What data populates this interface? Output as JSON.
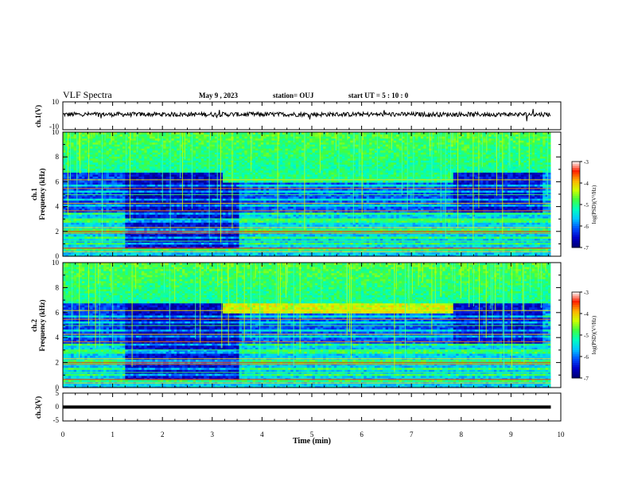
{
  "header": {
    "title": "VLF Spectra",
    "date": "May 9 , 2023",
    "station": "station= OUJ",
    "start": "start  UT  =   5  : 10 : 0"
  },
  "chart_data": [
    {
      "type": "line",
      "panel": "ch1-waveform",
      "ylabel": "ch.1(V)",
      "ylim": [
        -10,
        10
      ],
      "yticks": [
        10,
        -10
      ],
      "level": 0,
      "description_series": "noisy waveform near 0 V"
    },
    {
      "type": "heatmap",
      "panel": "ch1-spectrogram",
      "ylabel": "ch.1\nFrequency  (kHz)",
      "ylim": [
        0,
        10
      ],
      "yticks": [
        0,
        2,
        4,
        6,
        8,
        10
      ],
      "colorbar": {
        "label": "log(PSD)(V²/Hz)",
        "range": [
          -7,
          -3
        ],
        "ticks": [
          -3,
          -4,
          -5,
          -6,
          -7
        ]
      },
      "features": [
        {
          "t_start": 0,
          "t_end": 9.8,
          "f_low": 6.5,
          "f_high": 10,
          "level": -4.8
        },
        {
          "t_start": 3.2,
          "t_end": 7.8,
          "f_low": 6.1,
          "f_high": 6.7,
          "level": -5.0
        },
        {
          "t_start": 1.2,
          "t_end": 3.5,
          "f_low": 0.6,
          "f_high": 3.5,
          "level": -6.8
        }
      ]
    },
    {
      "type": "heatmap",
      "panel": "ch2-spectrogram",
      "ylabel": "ch.2\nFrequency  (kHz)",
      "ylim": [
        0,
        10
      ],
      "yticks": [
        0,
        2,
        4,
        6,
        8,
        10
      ],
      "colorbar": {
        "label": "log(PSD)(V²/Hz)",
        "range": [
          -7,
          -3
        ],
        "ticks": [
          -3,
          -4,
          -5,
          -6,
          -7
        ]
      },
      "features": [
        {
          "t_start": 0,
          "t_end": 9.8,
          "f_low": 7.0,
          "f_high": 10,
          "level": -4.8
        },
        {
          "t_start": 3.2,
          "t_end": 7.8,
          "f_low": 5.8,
          "f_high": 6.8,
          "level": -4.3
        },
        {
          "t_start": 1.2,
          "t_end": 3.5,
          "f_low": 0.6,
          "f_high": 3.5,
          "level": -6.8
        }
      ]
    },
    {
      "type": "line",
      "panel": "ch3-waveform",
      "ylabel": "ch.3(V)",
      "ylim": [
        -5,
        5
      ],
      "yticks": [
        5,
        0,
        -5
      ],
      "level": 0
    }
  ],
  "xaxis": {
    "xlabel": "Time  (min)",
    "xlim": [
      0,
      10
    ],
    "ticks": [
      0,
      1,
      2,
      3,
      4,
      5,
      6,
      7,
      8,
      9,
      10
    ],
    "data_end": 9.8
  },
  "colors": {
    "colormap": [
      "#000080",
      "#0000ff",
      "#00a0ff",
      "#00ffff",
      "#00ff60",
      "#ffff00",
      "#ff0000",
      "#ffffff"
    ]
  }
}
